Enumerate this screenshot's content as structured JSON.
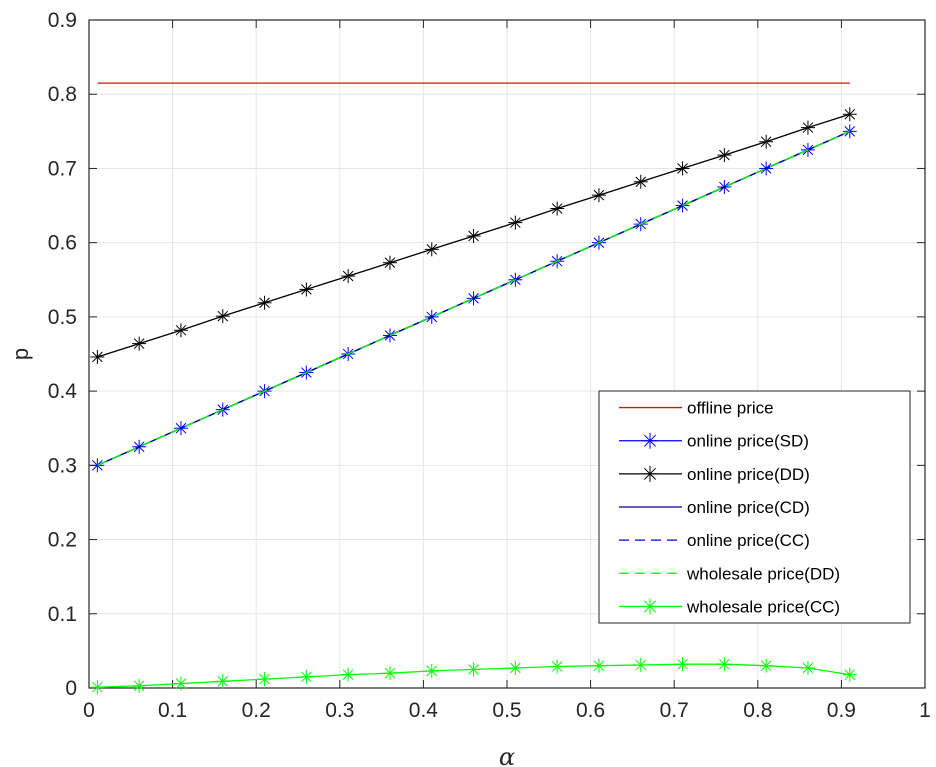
{
  "chart_data": {
    "type": "line",
    "title": "",
    "xlabel": "α",
    "ylabel": "p",
    "xlim": [
      0,
      1
    ],
    "ylim": [
      0,
      0.9
    ],
    "xticks": [
      "0",
      "0.1",
      "0.2",
      "0.3",
      "0.4",
      "0.5",
      "0.6",
      "0.7",
      "0.8",
      "0.9",
      "1"
    ],
    "yticks": [
      "0",
      "0.1",
      "0.2",
      "0.3",
      "0.4",
      "0.5",
      "0.6",
      "0.7",
      "0.8",
      "0.9"
    ],
    "grid": true,
    "legend_position": "lower-right",
    "x": [
      0.01,
      0.06,
      0.11,
      0.16,
      0.21,
      0.26,
      0.31,
      0.36,
      0.41,
      0.46,
      0.51,
      0.56,
      0.61,
      0.66,
      0.71,
      0.76,
      0.81,
      0.86,
      0.91
    ],
    "series": [
      {
        "name": "offline price",
        "color": "#ff0000",
        "style": "solid",
        "marker": "none",
        "values": [
          0.815,
          0.815,
          0.815,
          0.815,
          0.815,
          0.815,
          0.815,
          0.815,
          0.815,
          0.815,
          0.815,
          0.815,
          0.815,
          0.815,
          0.815,
          0.815,
          0.815,
          0.815,
          0.815
        ]
      },
      {
        "name": "online price(SD)",
        "color": "#0000ff",
        "style": "solid",
        "marker": "asterisk",
        "values": [
          0.3,
          0.325,
          0.35,
          0.375,
          0.4,
          0.425,
          0.45,
          0.475,
          0.5,
          0.525,
          0.55,
          0.575,
          0.6,
          0.625,
          0.65,
          0.675,
          0.7,
          0.725,
          0.75
        ]
      },
      {
        "name": "online price(DD)",
        "color": "#000000",
        "style": "solid",
        "marker": "asterisk",
        "values": [
          0.446,
          0.464,
          0.482,
          0.501,
          0.519,
          0.537,
          0.555,
          0.573,
          0.591,
          0.609,
          0.627,
          0.646,
          0.664,
          0.682,
          0.7,
          0.718,
          0.736,
          0.755,
          0.773
        ]
      },
      {
        "name": "online price(CD)",
        "color": "#00008b",
        "style": "solid",
        "marker": "none",
        "values": [
          0.3,
          0.325,
          0.35,
          0.375,
          0.4,
          0.425,
          0.45,
          0.475,
          0.5,
          0.525,
          0.55,
          0.575,
          0.6,
          0.625,
          0.65,
          0.675,
          0.7,
          0.725,
          0.75
        ]
      },
      {
        "name": "online price(CC)",
        "color": "#0000cd",
        "style": "dashed",
        "marker": "none",
        "values": [
          0.3,
          0.325,
          0.35,
          0.375,
          0.4,
          0.425,
          0.45,
          0.475,
          0.5,
          0.525,
          0.55,
          0.575,
          0.6,
          0.625,
          0.65,
          0.675,
          0.7,
          0.725,
          0.75
        ]
      },
      {
        "name": "wholesale price(DD)",
        "color": "#00ff00",
        "style": "dashed",
        "marker": "none",
        "values": [
          0.3,
          0.325,
          0.35,
          0.375,
          0.4,
          0.425,
          0.45,
          0.475,
          0.5,
          0.525,
          0.55,
          0.575,
          0.6,
          0.625,
          0.65,
          0.675,
          0.7,
          0.725,
          0.75
        ]
      },
      {
        "name": "wholesale price(CC)",
        "color": "#00ff00",
        "style": "solid",
        "marker": "asterisk",
        "values": [
          0.001,
          0.003,
          0.006,
          0.009,
          0.012,
          0.015,
          0.018,
          0.02,
          0.023,
          0.025,
          0.027,
          0.029,
          0.03,
          0.031,
          0.032,
          0.032,
          0.03,
          0.027,
          0.018
        ]
      }
    ]
  }
}
